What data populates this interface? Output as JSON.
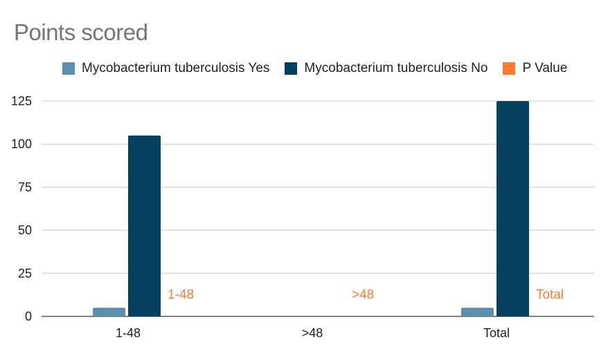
{
  "chart_data": {
    "type": "bar",
    "title": "Points scored",
    "xlabel": "",
    "ylabel": "",
    "categories": [
      "1-48",
      ">48",
      "Total"
    ],
    "ylim": [
      0,
      125
    ],
    "yticks": [
      0,
      25,
      50,
      75,
      100,
      125
    ],
    "grid": true,
    "legend_position": "top",
    "series": [
      {
        "name": "Mycobacterium tuberculosis Yes",
        "values": [
          5,
          0,
          5
        ],
        "color": "#5b8fad"
      },
      {
        "name": "Mycobacterium tuberculosis No",
        "values": [
          105,
          0,
          125
        ],
        "color": "#05405e"
      },
      {
        "name": "P Value",
        "values": [
          null,
          null,
          null
        ],
        "color": "#ff7b33",
        "point_labels": [
          "1-48",
          ">48",
          "Total"
        ]
      }
    ]
  }
}
